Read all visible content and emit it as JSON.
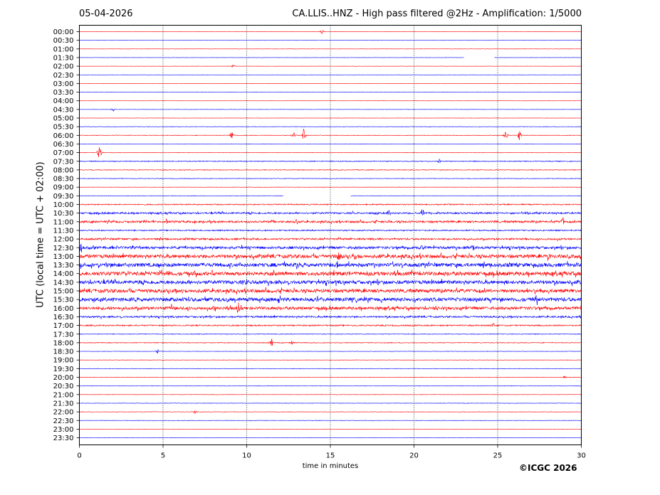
{
  "header": {
    "date": "05-04-2026",
    "title": "CA.LLIS..HNZ - High pass filtered @2Hz - Amplification: 1/5000"
  },
  "footer": {
    "copyright": "©ICGC 2026"
  },
  "chart_data": {
    "type": "line",
    "title": "CA.LLIS..HNZ - High pass filtered @2Hz - Amplification: 1/5000",
    "date": "05-04-2026",
    "xlabel": "time in minutes",
    "ylabel": "UTC (local time = UTC + 02:00)",
    "xlim": [
      0,
      30
    ],
    "x_ticks": [
      0,
      5,
      10,
      15,
      20,
      25,
      30
    ],
    "vertical_gridlines_at": [
      5,
      10,
      15,
      20,
      25
    ],
    "trace_colors": [
      "#ff0000",
      "#0000ff"
    ],
    "rows": [
      "00:00",
      "00:30",
      "01:00",
      "01:30",
      "02:00",
      "02:30",
      "03:00",
      "03:30",
      "04:00",
      "04:30",
      "05:00",
      "05:30",
      "06:00",
      "06:30",
      "07:00",
      "07:30",
      "08:00",
      "08:30",
      "09:00",
      "09:30",
      "10:00",
      "10:30",
      "11:00",
      "11:30",
      "12:00",
      "12:30",
      "13:00",
      "13:30",
      "14:00",
      "14:30",
      "15:00",
      "15:30",
      "16:00",
      "16:30",
      "17:00",
      "17:30",
      "18:00",
      "18:30",
      "19:00",
      "19:30",
      "20:00",
      "20:30",
      "21:00",
      "21:30",
      "22:00",
      "22:30",
      "23:00",
      "23:30"
    ],
    "noise_level": [
      0.2,
      0.2,
      0.2,
      0.2,
      0.2,
      0.2,
      0.2,
      0.2,
      0.2,
      0.2,
      0.2,
      0.3,
      0.4,
      0.3,
      0.3,
      0.6,
      0.5,
      0.4,
      0.3,
      0.3,
      0.8,
      1.2,
      1.4,
      0.9,
      1.2,
      1.8,
      2.4,
      2.6,
      2.6,
      2.5,
      2.4,
      2.6,
      2.0,
      1.2,
      0.9,
      0.5,
      0.5,
      0.3,
      0.3,
      0.3,
      0.3,
      0.3,
      0.3,
      0.3,
      0.3,
      0.3,
      0.2,
      0.2
    ],
    "gaps": [
      {
        "row": "01:30",
        "from": 23.0,
        "to": 24.8
      },
      {
        "row": "09:30",
        "from": 12.2,
        "to": 16.2
      }
    ],
    "events": [
      {
        "row": "00:00",
        "minute": 14.5,
        "amplitude": 4
      },
      {
        "row": "02:00",
        "minute": 9.2,
        "amplitude": 3
      },
      {
        "row": "04:30",
        "minute": 2.0,
        "amplitude": 4
      },
      {
        "row": "06:00",
        "minute": 9.1,
        "amplitude": 8
      },
      {
        "row": "06:00",
        "minute": 12.8,
        "amplitude": 6
      },
      {
        "row": "06:00",
        "minute": 13.4,
        "amplitude": 10
      },
      {
        "row": "06:00",
        "minute": 25.5,
        "amplitude": 10
      },
      {
        "row": "06:00",
        "minute": 26.3,
        "amplitude": 8
      },
      {
        "row": "07:00",
        "minute": 1.2,
        "amplitude": 14
      },
      {
        "row": "07:30",
        "minute": 21.5,
        "amplitude": 4
      },
      {
        "row": "10:30",
        "minute": 18.5,
        "amplitude": 5
      },
      {
        "row": "10:30",
        "minute": 20.5,
        "amplitude": 9
      },
      {
        "row": "11:00",
        "minute": 5.2,
        "amplitude": 6
      },
      {
        "row": "11:00",
        "minute": 13.0,
        "amplitude": 6
      },
      {
        "row": "11:00",
        "minute": 28.9,
        "amplitude": 8
      },
      {
        "row": "12:30",
        "minute": 0.1,
        "amplitude": 10
      },
      {
        "row": "12:30",
        "minute": 20.5,
        "amplitude": 6
      },
      {
        "row": "12:30",
        "minute": 23.5,
        "amplitude": 5
      },
      {
        "row": "13:00",
        "minute": 15.5,
        "amplitude": 8
      },
      {
        "row": "13:00",
        "minute": 16.5,
        "amplitude": 8
      },
      {
        "row": "13:00",
        "minute": 28.0,
        "amplitude": 6
      },
      {
        "row": "13:30",
        "minute": 13.0,
        "amplitude": 7
      },
      {
        "row": "13:30",
        "minute": 15.4,
        "amplitude": 10
      },
      {
        "row": "14:00",
        "minute": 5.3,
        "amplitude": 7
      },
      {
        "row": "14:00",
        "minute": 17.3,
        "amplitude": 7
      },
      {
        "row": "14:00",
        "minute": 20.2,
        "amplitude": 6
      },
      {
        "row": "14:30",
        "minute": 10.0,
        "amplitude": 6
      },
      {
        "row": "15:30",
        "minute": 27.3,
        "amplitude": 7
      },
      {
        "row": "16:00",
        "minute": 5.5,
        "amplitude": 6
      },
      {
        "row": "16:00",
        "minute": 8.1,
        "amplitude": 8
      },
      {
        "row": "16:00",
        "minute": 9.5,
        "amplitude": 10
      },
      {
        "row": "16:00",
        "minute": 21.3,
        "amplitude": 8
      },
      {
        "row": "17:00",
        "minute": 24.7,
        "amplitude": 5
      },
      {
        "row": "18:00",
        "minute": 11.5,
        "amplitude": 7
      },
      {
        "row": "18:00",
        "minute": 12.7,
        "amplitude": 5
      },
      {
        "row": "18:30",
        "minute": 4.7,
        "amplitude": 4
      },
      {
        "row": "20:00",
        "minute": 29.0,
        "amplitude": 3
      },
      {
        "row": "22:00",
        "minute": 6.9,
        "amplitude": 3
      }
    ]
  }
}
